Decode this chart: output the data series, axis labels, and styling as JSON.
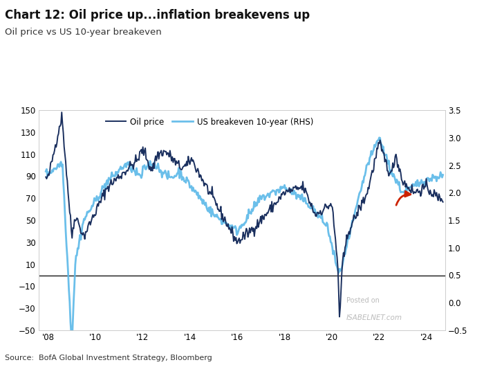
{
  "title": "Chart 12: Oil price up...inflation breakevens up",
  "subtitle": "Oil price vs US 10-year breakeven",
  "source": "Source:  BofA Global Investment Strategy, Bloomberg",
  "legend": [
    "Oil price",
    "US breakeven 10-year (RHS)"
  ],
  "oil_color": "#1a2f5e",
  "breakeven_color": "#5bb8e8",
  "arrow_color": "#cc2200",
  "ylim_left": [
    -50,
    150
  ],
  "ylim_right": [
    -0.5,
    3.5
  ],
  "yticks_left": [
    -50,
    -30,
    -10,
    10,
    30,
    50,
    70,
    90,
    110,
    130,
    150
  ],
  "yticks_right": [
    -0.5,
    0,
    0.5,
    1,
    1.5,
    2,
    2.5,
    3,
    3.5
  ],
  "xtick_positions": [
    2008,
    2010,
    2012,
    2014,
    2016,
    2018,
    2020,
    2022,
    2024
  ],
  "xtick_labels": [
    "'08",
    "'10",
    "'12",
    "'14",
    "'16",
    "'18",
    "'20",
    "'22",
    "'24"
  ],
  "xlim": [
    2007.6,
    2024.8
  ],
  "hline_y": 0,
  "background_color": "#ffffff",
  "watermark_line1": "Posted on",
  "watermark_line2": "ISABELNET.com"
}
